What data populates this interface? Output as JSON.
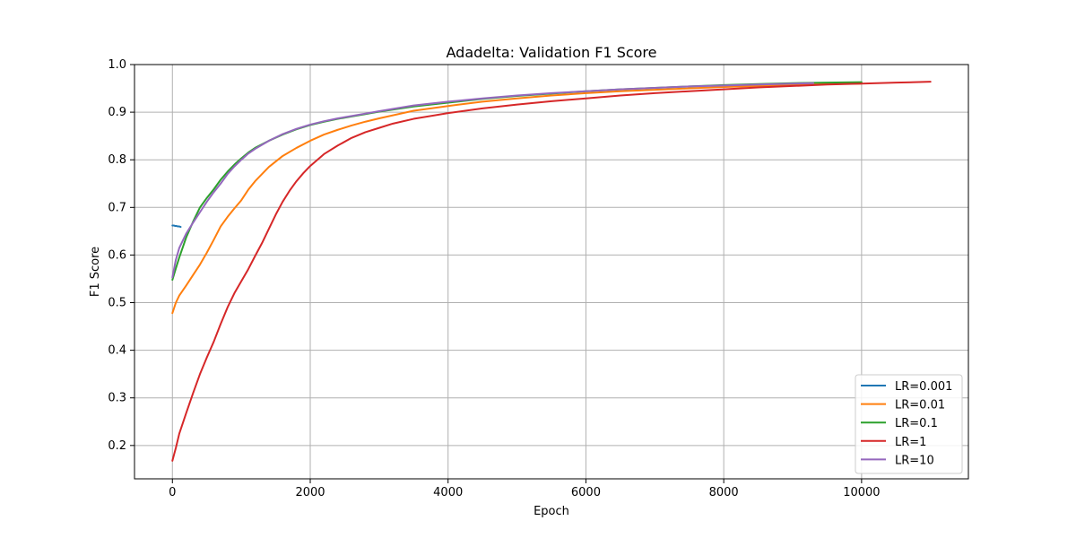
{
  "chart_data": {
    "type": "line",
    "title": "Adadelta: Validation F1 Score",
    "xlabel": "Epoch",
    "ylabel": "F1 Score",
    "xlim": [
      -550,
      11550
    ],
    "ylim": [
      0.13,
      1.0
    ],
    "xticks": [
      0,
      2000,
      4000,
      6000,
      8000,
      10000
    ],
    "yticks": [
      0.2,
      0.3,
      0.4,
      0.5,
      0.6,
      0.7,
      0.8,
      0.9,
      1.0
    ],
    "xtick_labels": [
      "0",
      "2000",
      "4000",
      "6000",
      "8000",
      "10000"
    ],
    "ytick_labels": [
      "0.2",
      "0.3",
      "0.4",
      "0.5",
      "0.6",
      "0.7",
      "0.8",
      "0.9",
      "1.0"
    ],
    "grid": true,
    "legend_position": "lower-right",
    "series": [
      {
        "name": "LR=0.001",
        "color": "#1f77b4",
        "x": [
          0,
          20,
          40,
          60,
          80,
          100,
          120
        ],
        "y": [
          0.662,
          0.662,
          0.661,
          0.661,
          0.66,
          0.66,
          0.659
        ]
      },
      {
        "name": "LR=0.01",
        "color": "#ff7f0e",
        "x": [
          0,
          50,
          100,
          200,
          300,
          400,
          500,
          600,
          700,
          800,
          900,
          1000,
          1100,
          1200,
          1400,
          1600,
          1800,
          2000,
          2200,
          2400,
          2600,
          2800,
          3000,
          3500,
          4000,
          4500,
          5000,
          5500,
          6000,
          6500,
          7000,
          7500,
          8000,
          8500,
          9000,
          9500,
          10000
        ],
        "y": [
          0.478,
          0.5,
          0.515,
          0.536,
          0.558,
          0.58,
          0.605,
          0.632,
          0.66,
          0.68,
          0.698,
          0.715,
          0.737,
          0.755,
          0.785,
          0.808,
          0.825,
          0.84,
          0.853,
          0.863,
          0.872,
          0.88,
          0.887,
          0.903,
          0.913,
          0.922,
          0.929,
          0.935,
          0.94,
          0.944,
          0.947,
          0.95,
          0.953,
          0.955,
          0.957,
          0.959,
          0.96
        ]
      },
      {
        "name": "LR=0.1",
        "color": "#2ca02c",
        "x": [
          0,
          50,
          100,
          200,
          300,
          400,
          500,
          600,
          700,
          800,
          900,
          1000,
          1100,
          1200,
          1400,
          1600,
          1800,
          2000,
          2200,
          2400,
          2600,
          2800,
          3000,
          3500,
          4000,
          4500,
          5000,
          5500,
          6000,
          6500,
          7000,
          7500,
          8000,
          8500,
          9000,
          9500,
          10000
        ],
        "y": [
          0.548,
          0.572,
          0.595,
          0.637,
          0.67,
          0.7,
          0.72,
          0.738,
          0.758,
          0.775,
          0.79,
          0.803,
          0.815,
          0.825,
          0.84,
          0.853,
          0.864,
          0.873,
          0.88,
          0.886,
          0.891,
          0.896,
          0.901,
          0.912,
          0.92,
          0.928,
          0.934,
          0.939,
          0.944,
          0.948,
          0.951,
          0.954,
          0.957,
          0.959,
          0.961,
          0.962,
          0.963
        ]
      },
      {
        "name": "LR=1",
        "color": "#d62728",
        "x": [
          0,
          50,
          100,
          200,
          300,
          400,
          500,
          600,
          700,
          800,
          900,
          1000,
          1100,
          1200,
          1300,
          1400,
          1500,
          1600,
          1700,
          1800,
          1900,
          2000,
          2200,
          2400,
          2600,
          2800,
          3000,
          3200,
          3500,
          4000,
          4500,
          5000,
          5500,
          6000,
          6500,
          7000,
          7500,
          8000,
          8500,
          9000,
          9500,
          10000,
          10500,
          11000
        ],
        "y": [
          0.168,
          0.195,
          0.225,
          0.268,
          0.31,
          0.35,
          0.385,
          0.418,
          0.455,
          0.49,
          0.52,
          0.545,
          0.57,
          0.598,
          0.625,
          0.655,
          0.685,
          0.712,
          0.735,
          0.755,
          0.772,
          0.787,
          0.812,
          0.83,
          0.846,
          0.858,
          0.867,
          0.876,
          0.886,
          0.898,
          0.908,
          0.916,
          0.923,
          0.929,
          0.935,
          0.94,
          0.944,
          0.948,
          0.952,
          0.955,
          0.958,
          0.96,
          0.962,
          0.964
        ]
      },
      {
        "name": "LR=10",
        "color": "#9467bd",
        "x": [
          0,
          50,
          100,
          200,
          300,
          400,
          500,
          600,
          700,
          800,
          900,
          1000,
          1100,
          1200,
          1400,
          1600,
          1800,
          2000,
          2200,
          2400,
          2600,
          2800,
          3000,
          3500,
          4000,
          4500,
          5000,
          5500,
          6000,
          6500,
          7000,
          7500,
          8000,
          8500,
          9000,
          9300
        ],
        "y": [
          0.553,
          0.59,
          0.615,
          0.645,
          0.668,
          0.69,
          0.712,
          0.732,
          0.75,
          0.77,
          0.786,
          0.8,
          0.813,
          0.823,
          0.84,
          0.854,
          0.865,
          0.874,
          0.881,
          0.887,
          0.892,
          0.897,
          0.902,
          0.914,
          0.922,
          0.929,
          0.935,
          0.94,
          0.944,
          0.948,
          0.951,
          0.954,
          0.956,
          0.958,
          0.96,
          0.961
        ]
      }
    ]
  }
}
